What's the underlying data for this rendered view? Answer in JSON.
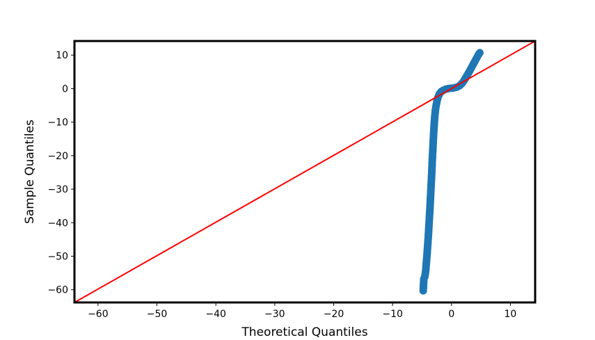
{
  "chart_data": {
    "type": "scatter",
    "title": "",
    "xlabel": "Theoretical Quantiles",
    "ylabel": "Sample Quantiles",
    "xlim": [
      -64,
      14.2
    ],
    "ylim": [
      -63.8,
      14.2
    ],
    "x_ticks": [
      -60,
      -50,
      -40,
      -30,
      -20,
      -10,
      0,
      10
    ],
    "y_ticks": [
      -60,
      -50,
      -40,
      -30,
      -20,
      -10,
      0,
      10
    ],
    "x_tick_labels": [
      "−60",
      "−50",
      "−40",
      "−30",
      "−20",
      "−10",
      "0",
      "10"
    ],
    "y_tick_labels": [
      "−60",
      "−50",
      "−40",
      "−30",
      "−20",
      "−10",
      "0",
      "10"
    ],
    "grid": false,
    "series": [
      {
        "kind": "points",
        "color": "#1f77b4",
        "points": [
          [
            -4.8,
            -60.3
          ],
          [
            -4.7,
            -56.8
          ],
          [
            -4.55,
            -56.2
          ],
          [
            -4.45,
            -55.3
          ],
          [
            -4.35,
            -53.8
          ],
          [
            -4.25,
            -51.5
          ],
          [
            -4.15,
            -49.5
          ],
          [
            -4.05,
            -47.0
          ],
          [
            -3.95,
            -44.5
          ],
          [
            -3.85,
            -41.5
          ],
          [
            -3.75,
            -38.5
          ],
          [
            -3.65,
            -35.5
          ],
          [
            -3.55,
            -32.0
          ],
          [
            -3.45,
            -28.5
          ],
          [
            -3.35,
            -25.0
          ],
          [
            -3.25,
            -21.0
          ],
          [
            -3.15,
            -17.5
          ],
          [
            -3.05,
            -14.0
          ],
          [
            -2.95,
            -11.0
          ],
          [
            -2.85,
            -8.5
          ],
          [
            -2.7,
            -6.0
          ],
          [
            -2.5,
            -4.0
          ],
          [
            -2.3,
            -2.6
          ],
          [
            -2.05,
            -1.6
          ],
          [
            -1.75,
            -0.9
          ],
          [
            -1.4,
            -0.5
          ],
          [
            -1.0,
            -0.2
          ],
          [
            -0.6,
            0.0
          ],
          [
            -0.2,
            0.1
          ],
          [
            0.2,
            0.15
          ],
          [
            0.6,
            0.3
          ],
          [
            1.0,
            0.5
          ],
          [
            1.4,
            0.9
          ],
          [
            1.8,
            1.6
          ],
          [
            2.2,
            2.6
          ],
          [
            2.6,
            3.8
          ],
          [
            3.0,
            5.0
          ],
          [
            3.4,
            6.3
          ],
          [
            3.8,
            7.6
          ],
          [
            4.2,
            8.9
          ],
          [
            4.5,
            9.9
          ],
          [
            4.8,
            10.7
          ]
        ]
      },
      {
        "kind": "line",
        "color": "#ff0000",
        "points": [
          [
            -64,
            -63.8
          ],
          [
            14.2,
            14.2
          ]
        ]
      }
    ]
  }
}
